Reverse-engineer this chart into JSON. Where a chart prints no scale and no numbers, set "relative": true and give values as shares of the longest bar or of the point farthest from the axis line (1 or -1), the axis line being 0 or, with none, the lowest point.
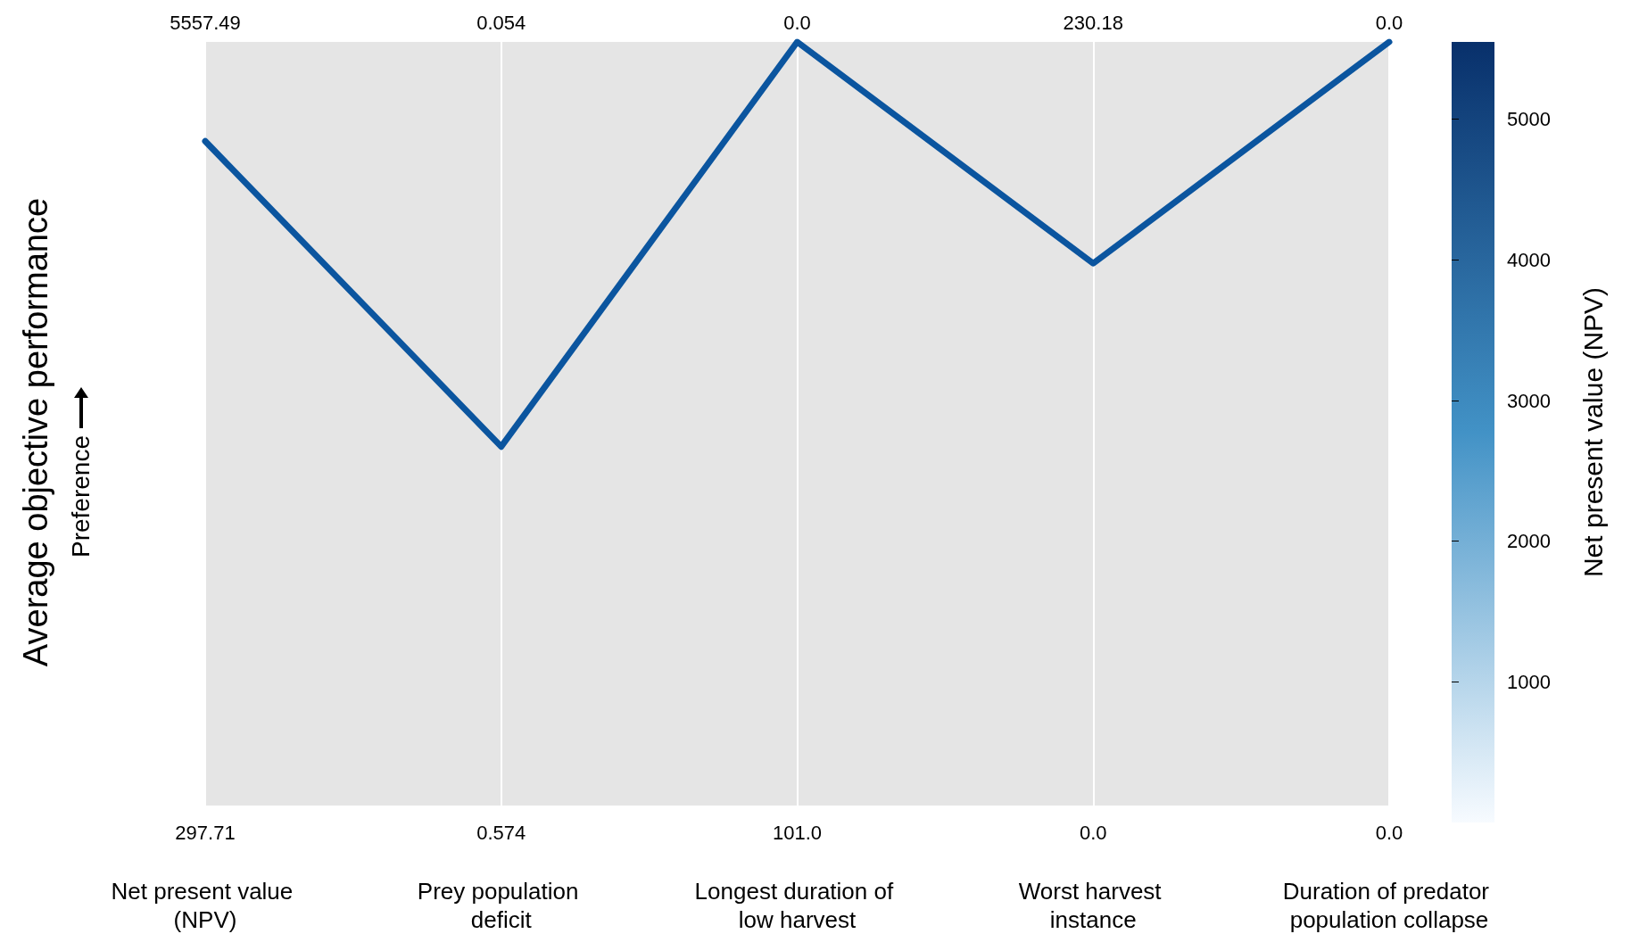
{
  "chart_data": {
    "type": "line",
    "relative": true,
    "ylabel": "Average objective performance",
    "clabel": "Net present value (NPV)",
    "clim": [
      0,
      5550
    ],
    "cticks": [
      1000,
      2000,
      3000,
      4000,
      5000
    ],
    "categories": [
      "Net present value (NPV)",
      "Prey population deficit",
      "Longest duration of low harvest",
      "Worst harvest instance",
      "Duration of predator population collapse"
    ],
    "series": [
      {
        "color": "#0b559f",
        "values": [
          0.87,
          0.47,
          1,
          0.71,
          1
        ]
      }
    ],
    "grid": "x",
    "marker": "none",
    "line_style": "solid",
    "annotations": [
      "5557.49",
      "0.054",
      "0.0",
      "230.18",
      "0.0",
      "297.71",
      "0.574",
      "101.0",
      "0.0",
      "0.0",
      "Preference"
    ]
  }
}
